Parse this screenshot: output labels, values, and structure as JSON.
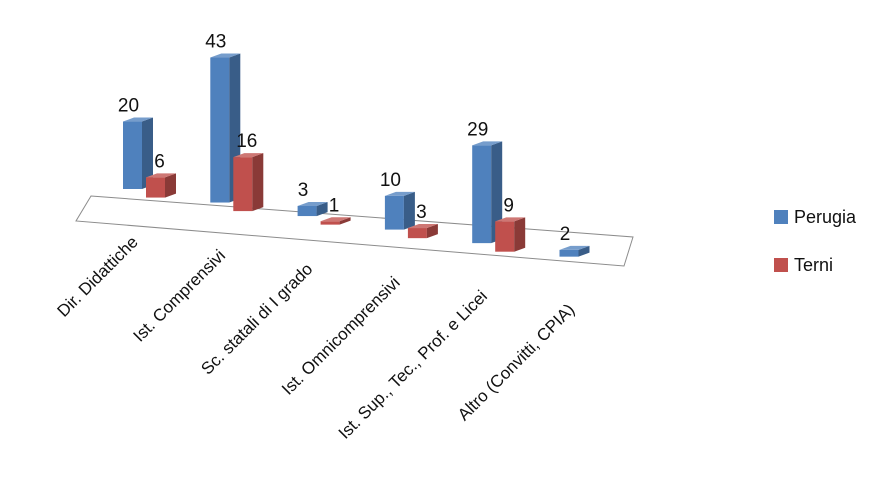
{
  "chart_data": {
    "type": "bar",
    "title": "",
    "xlabel": "",
    "ylabel": "",
    "categories": [
      "Dir. Didattiche",
      "Ist. Comprensivi",
      "Sc. statali di I grado",
      "Ist. Omnicomprensivi",
      "Ist. Sup., Tec., Prof. e Licei",
      "Altro (Convitti, CPIA)"
    ],
    "series": [
      {
        "name": "Perugia",
        "values": [
          20,
          43,
          3,
          10,
          29,
          2
        ],
        "color": "#4F81BD"
      },
      {
        "name": "Terni",
        "values": [
          6,
          16,
          1,
          3,
          9,
          null
        ],
        "color": "#C0504D"
      }
    ],
    "ylim": [
      0,
      43
    ],
    "grid": false,
    "legend_position": "right",
    "three_d": true
  }
}
